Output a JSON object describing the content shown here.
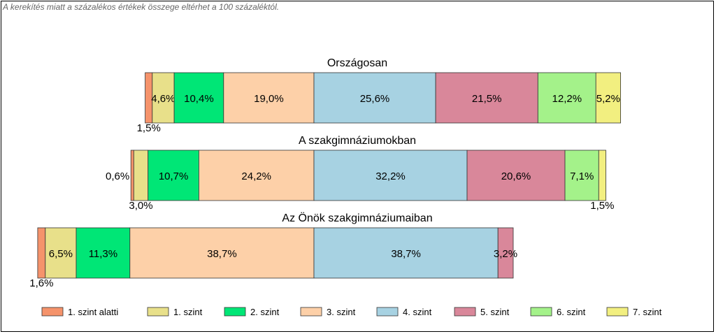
{
  "note": "A kerekítés miatt a  százalékos értékek összege eltérhet a 100 százaléktól.",
  "chart_data": {
    "type": "bar",
    "orientation": "horizontal-stacked",
    "categories": [
      "1. szint alatti",
      "1. szint",
      "2. szint",
      "3. szint",
      "4. szint",
      "5. szint",
      "6. szint",
      "7. szint"
    ],
    "colors": [
      "#f5936b",
      "#e8e08a",
      "#00e676",
      "#fdd0a8",
      "#a7d2e2",
      "#d9879a",
      "#a4f28a",
      "#f2ef80"
    ],
    "bars": [
      {
        "title": "Országosan",
        "values": [
          1.5,
          4.6,
          10.4,
          19.0,
          25.6,
          21.5,
          12.2,
          5.2
        ],
        "labels": [
          "1,5%",
          "4,6%",
          "10,4%",
          "19,0%",
          "25,6%",
          "21,5%",
          "12,2%",
          "5,2%"
        ]
      },
      {
        "title": "A szakgimnáziumokban",
        "values": [
          0.6,
          3.0,
          10.7,
          24.2,
          32.2,
          20.6,
          7.1,
          1.5
        ],
        "labels": [
          "0,6%",
          "3,0%",
          "10,7%",
          "24,2%",
          "32,2%",
          "20,6%",
          "7,1%",
          "1,5%"
        ]
      },
      {
        "title": "Az Önök szakgimnáziumaiban",
        "values": [
          1.6,
          6.5,
          11.3,
          38.7,
          38.7,
          3.2,
          0,
          0
        ],
        "labels": [
          "1,6%",
          "6,5%",
          "11,3%",
          "38,7%",
          "38,7%",
          "3,2%",
          "",
          ""
        ]
      }
    ],
    "legend": "bottom"
  }
}
